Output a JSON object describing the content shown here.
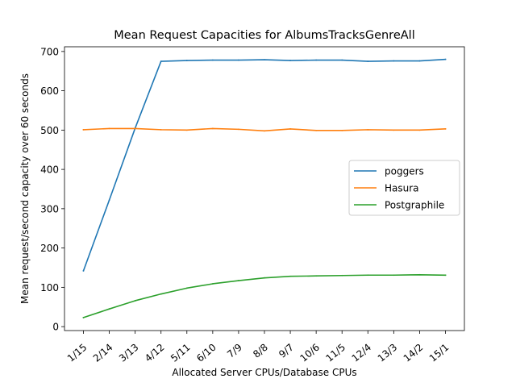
{
  "chart_data": {
    "type": "line",
    "title": "Mean Request Capacities for AlbumsTracksGenreAll",
    "xlabel": "Allocated Server CPUs/Database CPUs",
    "ylabel": "Mean request/second capacity over 60 seconds",
    "categories": [
      "1/15",
      "2/14",
      "3/13",
      "4/12",
      "5/11",
      "6/10",
      "7/9",
      "8/8",
      "9/7",
      "10/6",
      "11/5",
      "12/4",
      "13/3",
      "14/2",
      "15/1"
    ],
    "ylim": [
      -10,
      712
    ],
    "yticks": [
      0,
      100,
      200,
      300,
      400,
      500,
      600,
      700
    ],
    "grid": false,
    "legend_position": "center-right",
    "series": [
      {
        "name": "poggers",
        "color": "#1f77b4",
        "values": [
          142,
          322,
          505,
          675,
          677,
          678,
          678,
          679,
          677,
          678,
          678,
          675,
          676,
          676,
          680
        ]
      },
      {
        "name": "Hasura",
        "color": "#ff7f0e",
        "values": [
          501,
          504,
          504,
          501,
          500,
          504,
          502,
          498,
          503,
          499,
          499,
          501,
          500,
          500,
          503
        ]
      },
      {
        "name": "Postgraphile",
        "color": "#2ca02c",
        "values": [
          23,
          45,
          66,
          83,
          98,
          109,
          117,
          124,
          128,
          129,
          130,
          131,
          131,
          132,
          131
        ]
      }
    ]
  }
}
